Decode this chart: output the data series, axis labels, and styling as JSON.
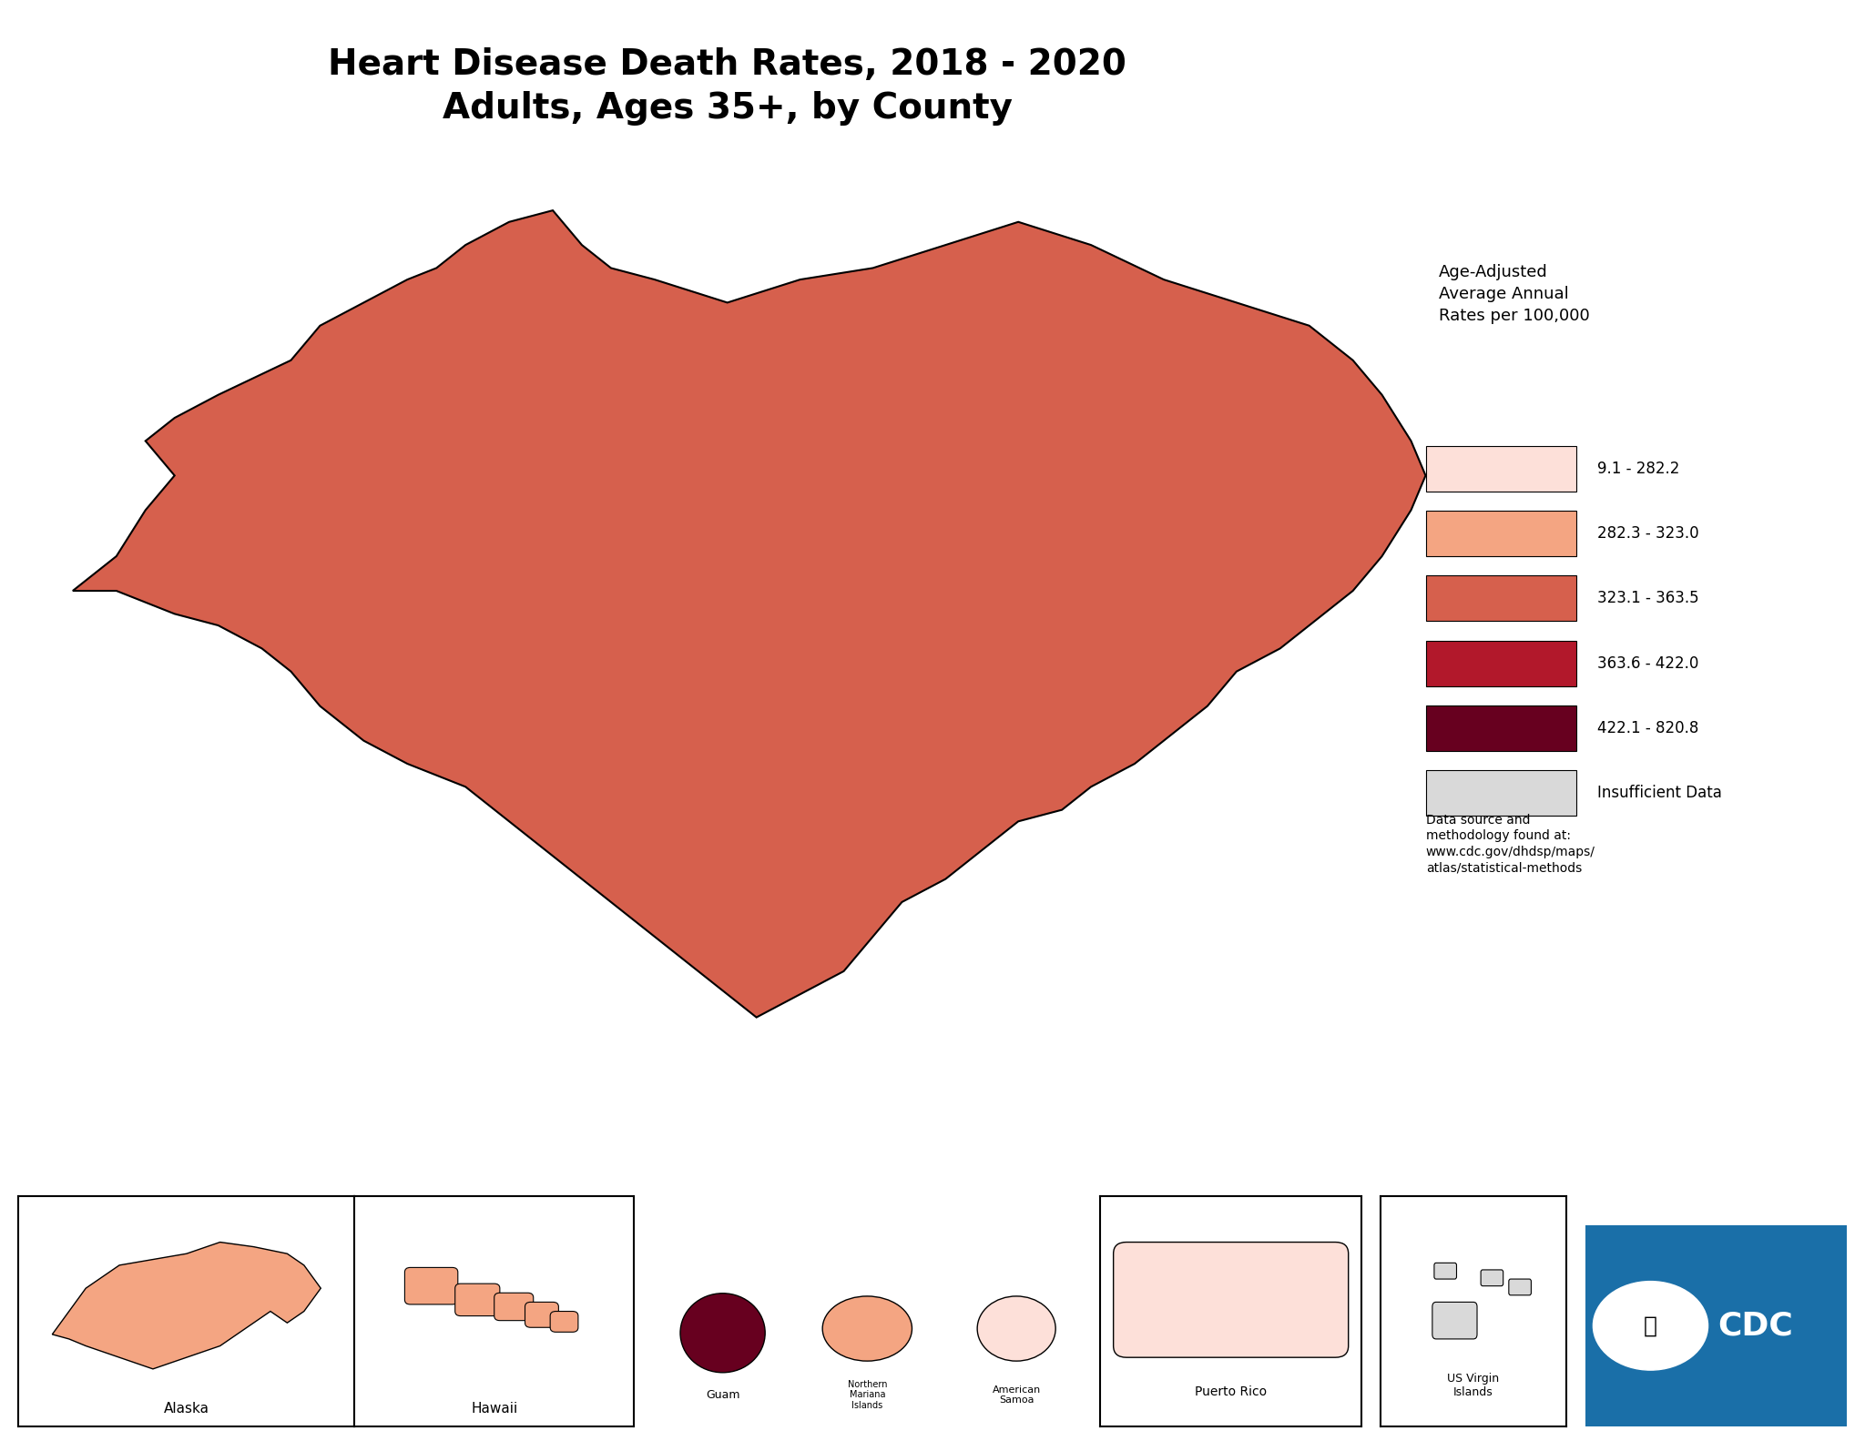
{
  "title_line1": "Heart Disease Death Rates, 2018 - 2020",
  "title_line2": "Adults, Ages 35+, by County",
  "title_fontsize": 28,
  "background_color": "#ffffff",
  "legend_title": "Age-Adjusted\nAverage Annual\nRates per 100,000",
  "legend_labels": [
    "9.1 - 282.2",
    "282.3 - 323.0",
    "323.1 - 363.5",
    "363.6 - 422.0",
    "422.1 - 820.8",
    "Insufficient Data"
  ],
  "legend_colors": [
    "#fde0d9",
    "#f4a582",
    "#d6604d",
    "#b2182b",
    "#67001f",
    "#d9d9d9"
  ],
  "data_source_text": "Data source and\nmethodology found at:\nwww.cdc.gov/dhdsp/maps/\natlas/statistical-methods",
  "map_border_color": "#000000",
  "county_border_color": "#808080",
  "state_border_color": "#000000",
  "figsize": [
    20.48,
    15.83
  ],
  "dpi": 100,
  "cdc_blue": "#1a6fa8"
}
